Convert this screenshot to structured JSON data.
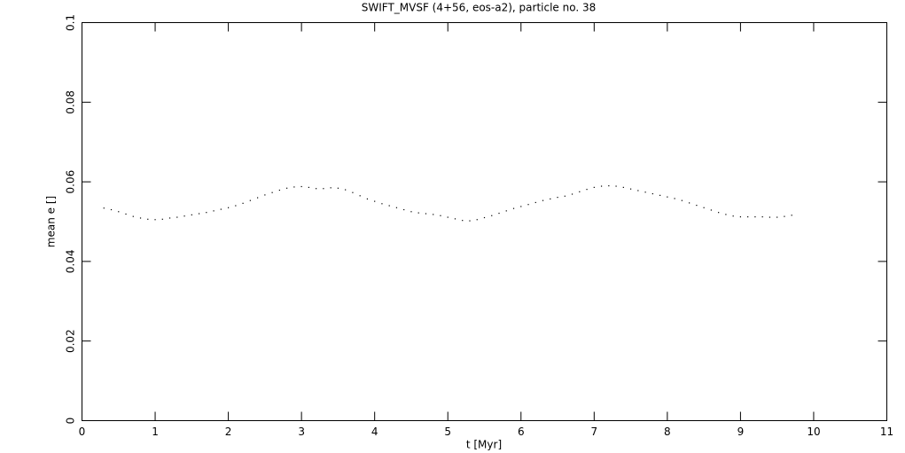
{
  "chart_data": {
    "type": "scatter",
    "title": "SWIFT_MVSF (4+56, eos-a2), particle no. 38",
    "x_label": "t [Myr]",
    "y_label": "mean e []",
    "xlim": [
      0,
      11
    ],
    "ylim": [
      0,
      0.1
    ],
    "xticks": [
      0,
      1,
      2,
      3,
      4,
      5,
      6,
      7,
      8,
      9,
      10,
      11
    ],
    "yticks": [
      0,
      0.02,
      0.04,
      0.06,
      0.08,
      0.1
    ],
    "color": "#000000",
    "x": [
      0.3,
      0.4,
      0.5,
      0.6,
      0.7,
      0.8,
      0.9,
      1.0,
      1.1,
      1.2,
      1.3,
      1.4,
      1.5,
      1.6,
      1.7,
      1.8,
      1.9,
      2.0,
      2.1,
      2.2,
      2.3,
      2.4,
      2.5,
      2.6,
      2.7,
      2.8,
      2.9,
      3.0,
      3.1,
      3.2,
      3.3,
      3.4,
      3.5,
      3.6,
      3.7,
      3.8,
      3.9,
      4.0,
      4.1,
      4.2,
      4.3,
      4.4,
      4.5,
      4.6,
      4.7,
      4.8,
      4.9,
      5.0,
      5.1,
      5.2,
      5.3,
      5.4,
      5.5,
      5.6,
      5.7,
      5.8,
      5.9,
      6.0,
      6.1,
      6.2,
      6.3,
      6.4,
      6.5,
      6.6,
      6.7,
      6.8,
      6.9,
      7.0,
      7.1,
      7.2,
      7.3,
      7.4,
      7.5,
      7.6,
      7.7,
      7.8,
      7.9,
      8.0,
      8.1,
      8.2,
      8.3,
      8.4,
      8.5,
      8.6,
      8.7,
      8.8,
      8.9,
      9.0,
      9.1,
      9.2,
      9.3,
      9.4,
      9.5,
      9.6,
      9.7
    ],
    "values": [
      0.0534,
      0.053,
      0.0525,
      0.0519,
      0.0513,
      0.0509,
      0.0506,
      0.0505,
      0.0506,
      0.0509,
      0.0511,
      0.0514,
      0.0517,
      0.052,
      0.0523,
      0.0527,
      0.0531,
      0.0535,
      0.054,
      0.0546,
      0.0553,
      0.056,
      0.0567,
      0.0573,
      0.0579,
      0.0584,
      0.0587,
      0.0588,
      0.0586,
      0.0583,
      0.0583,
      0.0585,
      0.0584,
      0.058,
      0.0573,
      0.0565,
      0.0557,
      0.0551,
      0.0545,
      0.054,
      0.0535,
      0.053,
      0.0525,
      0.0522,
      0.052,
      0.0518,
      0.0515,
      0.0511,
      0.0507,
      0.0503,
      0.0502,
      0.0505,
      0.051,
      0.0515,
      0.0521,
      0.0527,
      0.0533,
      0.0538,
      0.0543,
      0.0548,
      0.0553,
      0.0557,
      0.0561,
      0.0564,
      0.0569,
      0.0575,
      0.0581,
      0.0586,
      0.0589,
      0.059,
      0.0589,
      0.0586,
      0.0582,
      0.0578,
      0.0574,
      0.057,
      0.0566,
      0.0562,
      0.0558,
      0.0553,
      0.0547,
      0.0541,
      0.0535,
      0.0529,
      0.0523,
      0.0518,
      0.0514,
      0.0512,
      0.0512,
      0.0512,
      0.0512,
      0.0511,
      0.0511,
      0.0513,
      0.0516
    ]
  }
}
